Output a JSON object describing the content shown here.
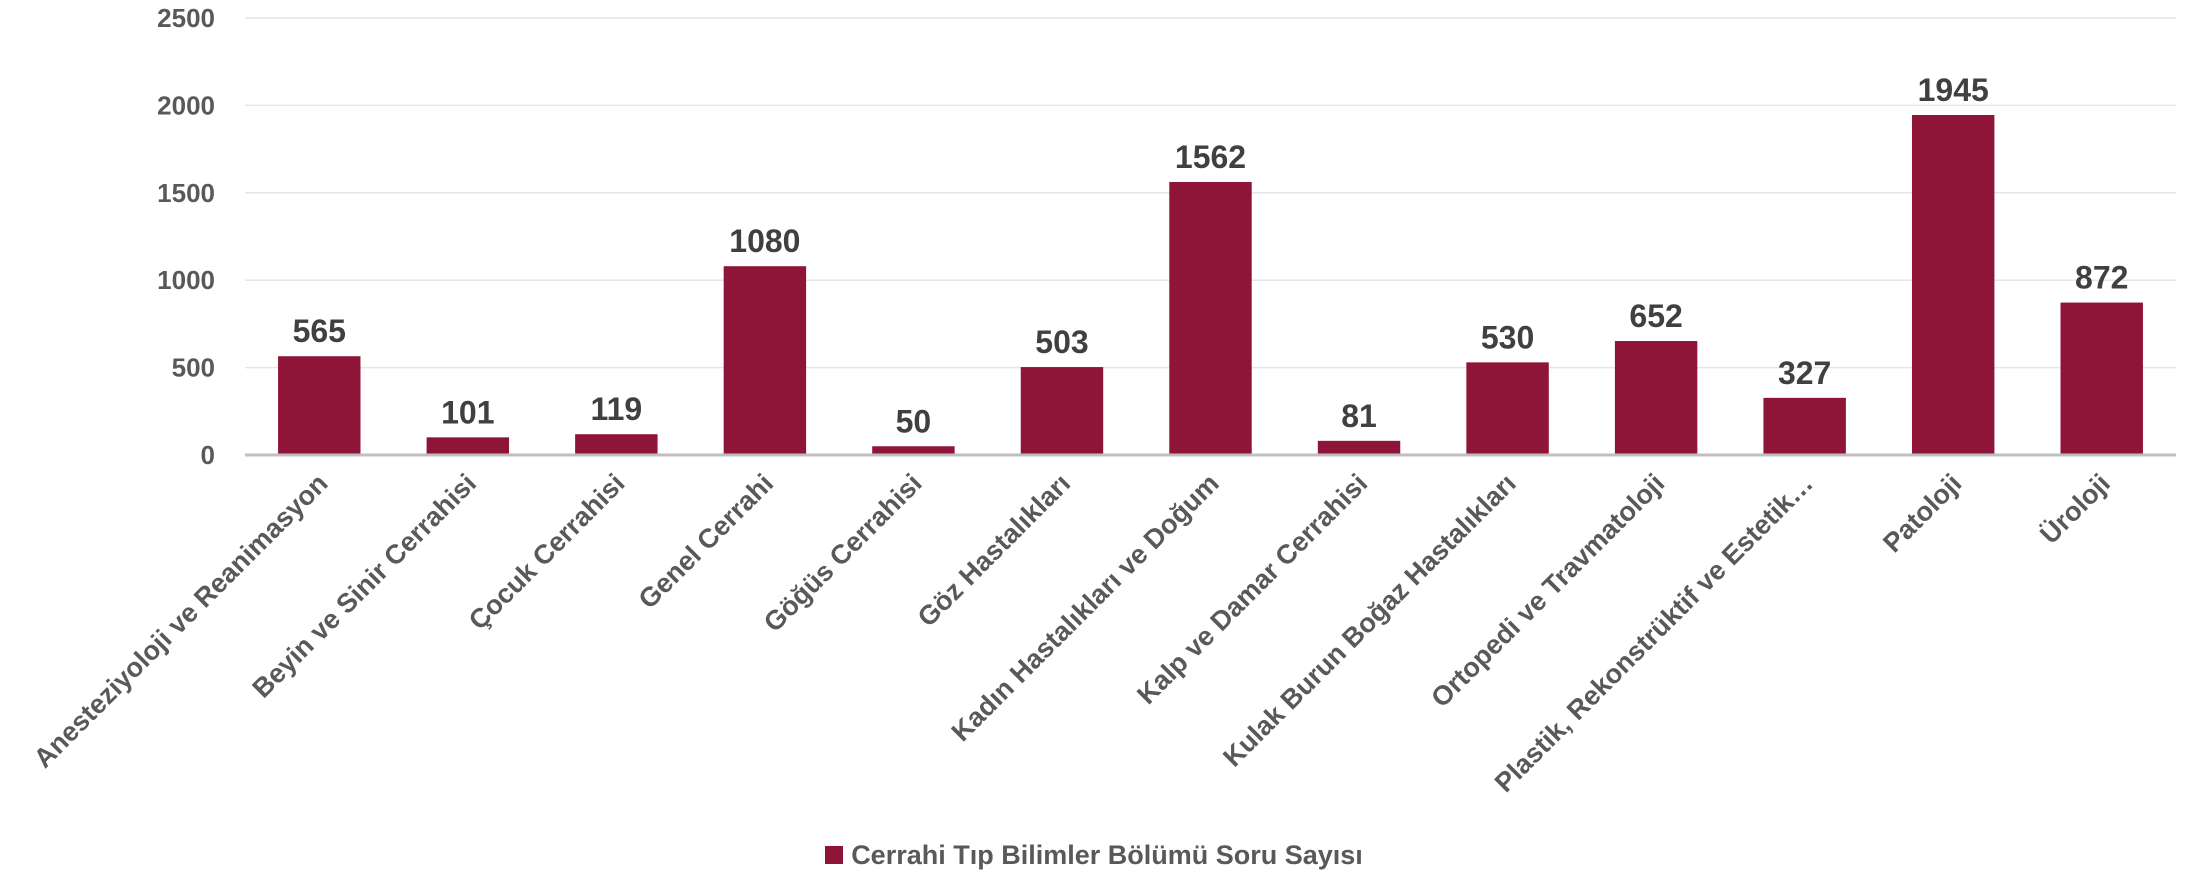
{
  "chart_data": {
    "type": "bar",
    "categories": [
      "Anesteziyoloji ve Reanimasyon",
      "Beyin ve Sinir Cerrahisi",
      "Çocuk Cerrahisi",
      "Genel Cerrahi",
      "Göğüs Cerrahisi",
      "Göz Hastalıkları",
      "Kadın Hastalıkları ve Doğum",
      "Kalp ve Damar Cerrahisi",
      "Kulak Burun Boğaz Hastalıkları",
      "Ortopedi ve Travmatoloji",
      "Plastik, Rekonstrüktif ve Estetik…",
      "Patoloji",
      "Üroloji"
    ],
    "series": [
      {
        "name": "Cerrahi Tıp Bilimler Bölümü Soru Sayısı",
        "values": [
          565,
          101,
          119,
          1080,
          50,
          503,
          1562,
          81,
          530,
          652,
          327,
          1945,
          872
        ],
        "color": "#8e1538"
      }
    ],
    "ylim": [
      0,
      2500
    ],
    "yticks": [
      "0",
      "500",
      "1000",
      "1500",
      "2000",
      "2500"
    ],
    "grid": true,
    "data_labels": true,
    "legend_position": "bottom"
  },
  "legend": {
    "label": "Cerrahi Tıp Bilimler Bölümü Soru Sayısı"
  }
}
